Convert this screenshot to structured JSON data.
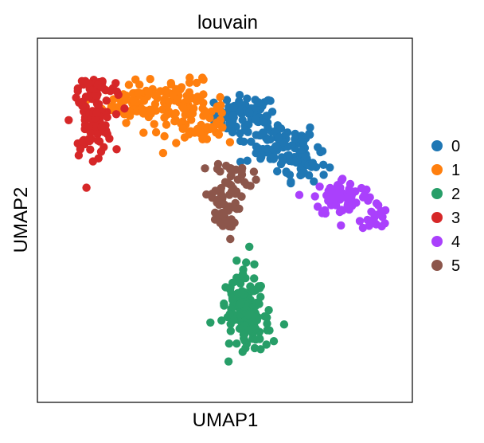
{
  "chart_data": {
    "type": "scatter",
    "title": "louvain",
    "xlabel": "UMAP1",
    "ylabel": "UMAP2",
    "grid": false,
    "ticks": false,
    "legend_position": "right",
    "xlim": [
      0,
      100
    ],
    "ylim": [
      0,
      100
    ],
    "series": [
      {
        "name": "0",
        "color": "#1f77b4",
        "clusters": [
          {
            "cx": 56,
            "cy": 82,
            "sx": 4.5,
            "sy": 3.0,
            "n": 70
          },
          {
            "cx": 66,
            "cy": 73,
            "sx": 6.0,
            "sy": 3.5,
            "n": 85
          },
          {
            "cx": 73,
            "cy": 67,
            "sx": 3.5,
            "sy": 2.5,
            "n": 35
          }
        ]
      },
      {
        "name": "1",
        "color": "#ff7f0e",
        "clusters": [
          {
            "cx": 24,
            "cy": 86,
            "sx": 5.0,
            "sy": 3.0,
            "n": 65
          },
          {
            "cx": 38,
            "cy": 84,
            "sx": 6.0,
            "sy": 4.0,
            "n": 80
          },
          {
            "cx": 45,
            "cy": 78,
            "sx": 3.5,
            "sy": 3.0,
            "n": 25
          }
        ]
      },
      {
        "name": "2",
        "color": "#279e68",
        "clusters": [
          {
            "cx": 55,
            "cy": 23,
            "sx": 3.5,
            "sy": 4.5,
            "n": 70
          },
          {
            "cx": 59,
            "cy": 16,
            "sx": 3.5,
            "sy": 3.5,
            "n": 45
          },
          {
            "cx": 56,
            "cy": 30,
            "sx": 2.0,
            "sy": 5.0,
            "n": 25
          }
        ]
      },
      {
        "name": "3",
        "color": "#d62728",
        "clusters": [
          {
            "cx": 11,
            "cy": 80,
            "sx": 3.0,
            "sy": 5.0,
            "n": 90
          },
          {
            "cx": 13,
            "cy": 90,
            "sx": 3.0,
            "sy": 2.0,
            "n": 30
          }
        ]
      },
      {
        "name": "4",
        "color": "#aa40fc",
        "clusters": [
          {
            "cx": 85,
            "cy": 57,
            "sx": 4.5,
            "sy": 3.0,
            "n": 65
          },
          {
            "cx": 94,
            "cy": 51,
            "sx": 2.0,
            "sy": 2.0,
            "n": 20
          }
        ]
      },
      {
        "name": "5",
        "color": "#8c564b",
        "clusters": [
          {
            "cx": 52,
            "cy": 62,
            "sx": 3.0,
            "sy": 3.5,
            "n": 40
          },
          {
            "cx": 49,
            "cy": 52,
            "sx": 2.2,
            "sy": 4.0,
            "n": 35
          }
        ]
      }
    ]
  }
}
